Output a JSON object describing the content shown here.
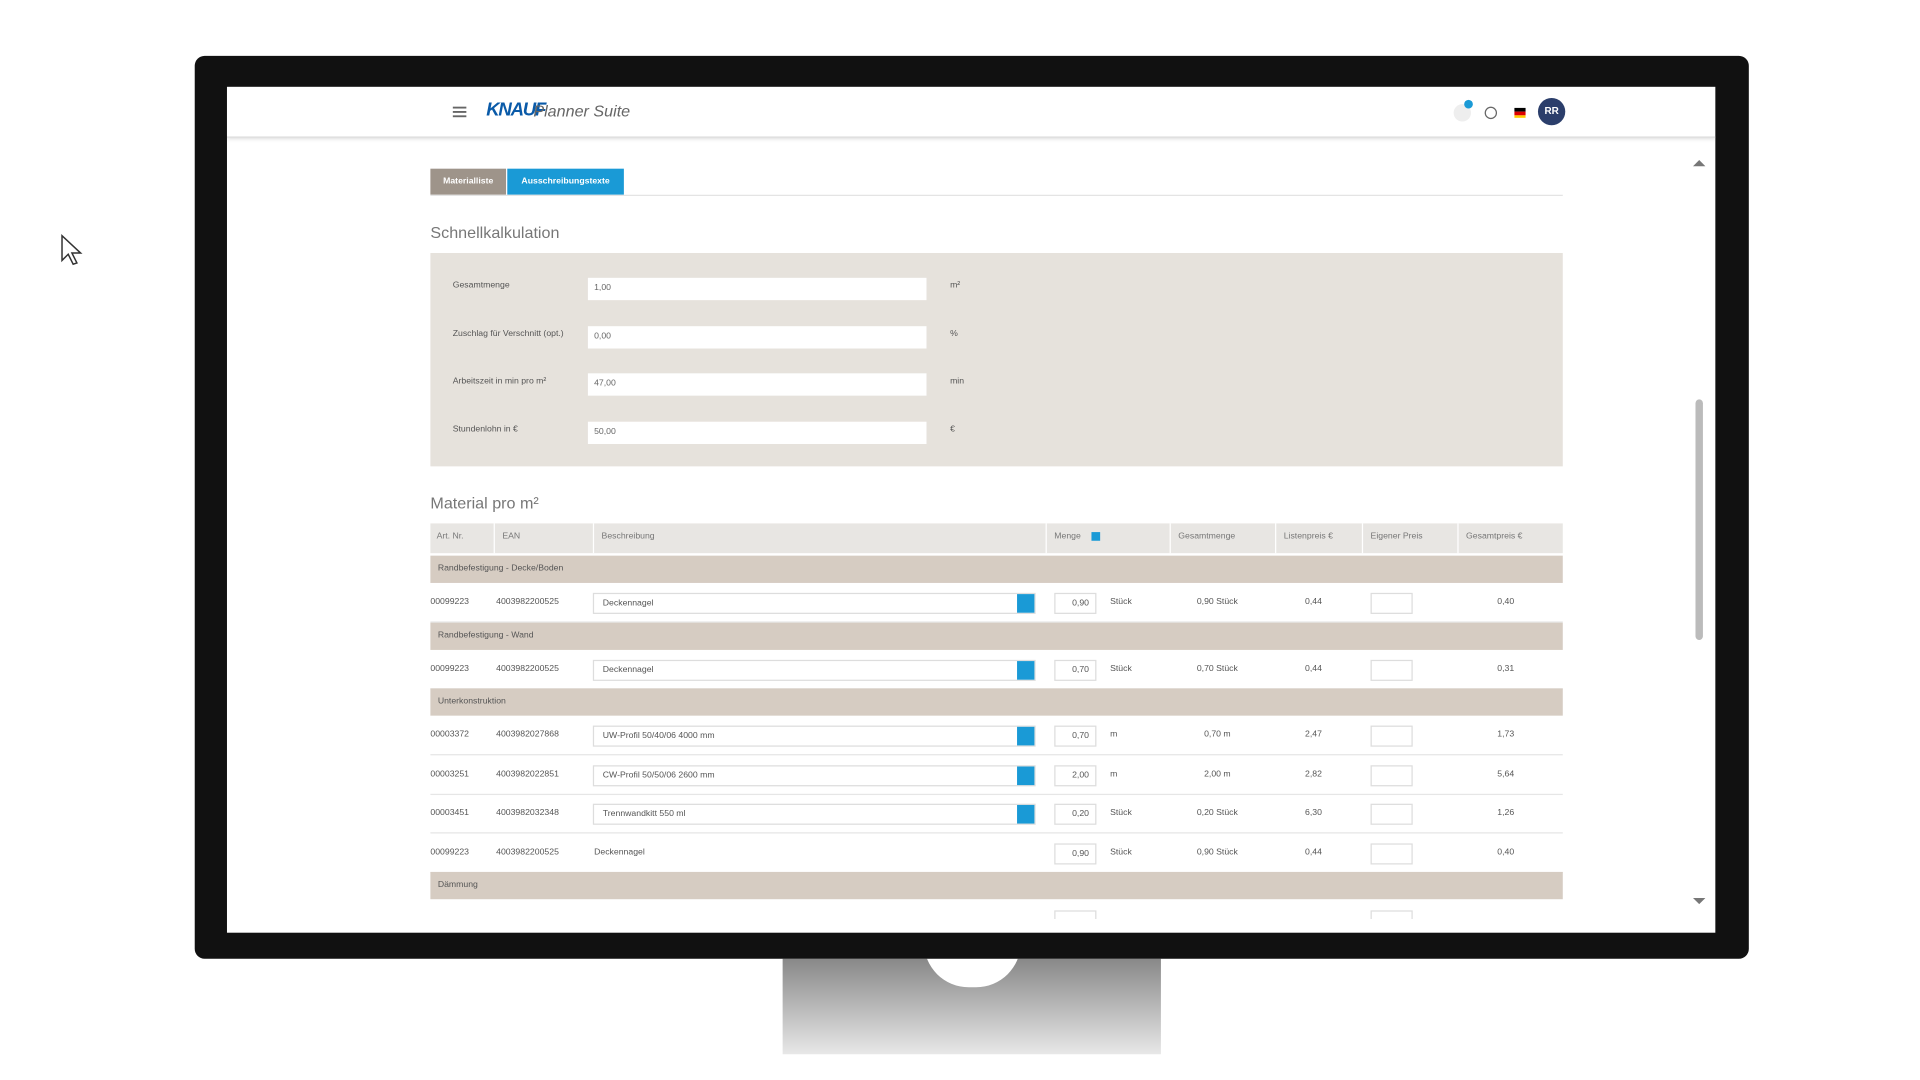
{
  "header": {
    "brand": "KNAUF",
    "app": "Planner Suite",
    "avatar": "RR"
  },
  "tabs": [
    "Materialliste",
    "Ausschreibungstexte"
  ],
  "quick": {
    "title": "Schnellkalkulation",
    "fields": [
      {
        "label": "Gesamtmenge",
        "value": "1,00",
        "unit": "m²"
      },
      {
        "label": "Zuschlag für Verschnitt (opt.)",
        "value": "0,00",
        "unit": "%"
      },
      {
        "label": "Arbeitszeit in min pro m²",
        "value": "47,00",
        "unit": "min"
      },
      {
        "label": "Stundenlohn in €",
        "value": "50,00",
        "unit": "€"
      }
    ]
  },
  "material": {
    "title": "Material pro m²",
    "columns": [
      "Art. Nr.",
      "EAN",
      "Beschreibung",
      "Menge",
      "Gesamtmenge",
      "Listenpreis €",
      "Eigener Preis",
      "Gesamtpreis €"
    ],
    "groups": [
      {
        "name": "Randbefestigung - Decke/Boden",
        "rows": [
          {
            "art": "00099223",
            "ean": "4003982200525",
            "desc": "Deckennagel",
            "dropdown": true,
            "menge": "0,90",
            "unit": "Stück",
            "gesamt": "0,90 Stück",
            "listen": "0,44",
            "preis": "0,40"
          }
        ]
      },
      {
        "name": "Randbefestigung - Wand",
        "rows": [
          {
            "art": "00099223",
            "ean": "4003982200525",
            "desc": "Deckennagel",
            "dropdown": true,
            "menge": "0,70",
            "unit": "Stück",
            "gesamt": "0,70 Stück",
            "listen": "0,44",
            "preis": "0,31"
          }
        ]
      },
      {
        "name": "Unterkonstruktion",
        "rows": [
          {
            "art": "00003372",
            "ean": "4003982027868",
            "desc": "UW-Profil 50/40/06 4000 mm",
            "dropdown": true,
            "menge": "0,70",
            "unit": "m",
            "gesamt": "0,70 m",
            "listen": "2,47",
            "preis": "1,73"
          },
          {
            "art": "00003251",
            "ean": "4003982022851",
            "desc": "CW-Profil 50/50/06 2600 mm",
            "dropdown": true,
            "menge": "2,00",
            "unit": "m",
            "gesamt": "2,00 m",
            "listen": "2,82",
            "preis": "5,64"
          },
          {
            "art": "00003451",
            "ean": "4003982032348",
            "desc": "Trennwandkitt 550 ml",
            "dropdown": true,
            "menge": "0,20",
            "unit": "Stück",
            "gesamt": "0,20 Stück",
            "listen": "6,30",
            "preis": "1,26"
          },
          {
            "art": "00099223",
            "ean": "4003982200525",
            "desc": "Deckennagel",
            "dropdown": false,
            "menge": "0,90",
            "unit": "Stück",
            "gesamt": "0,90 Stück",
            "listen": "0,44",
            "preis": "0,40"
          }
        ]
      },
      {
        "name": "Dämmung",
        "rows": []
      }
    ]
  }
}
